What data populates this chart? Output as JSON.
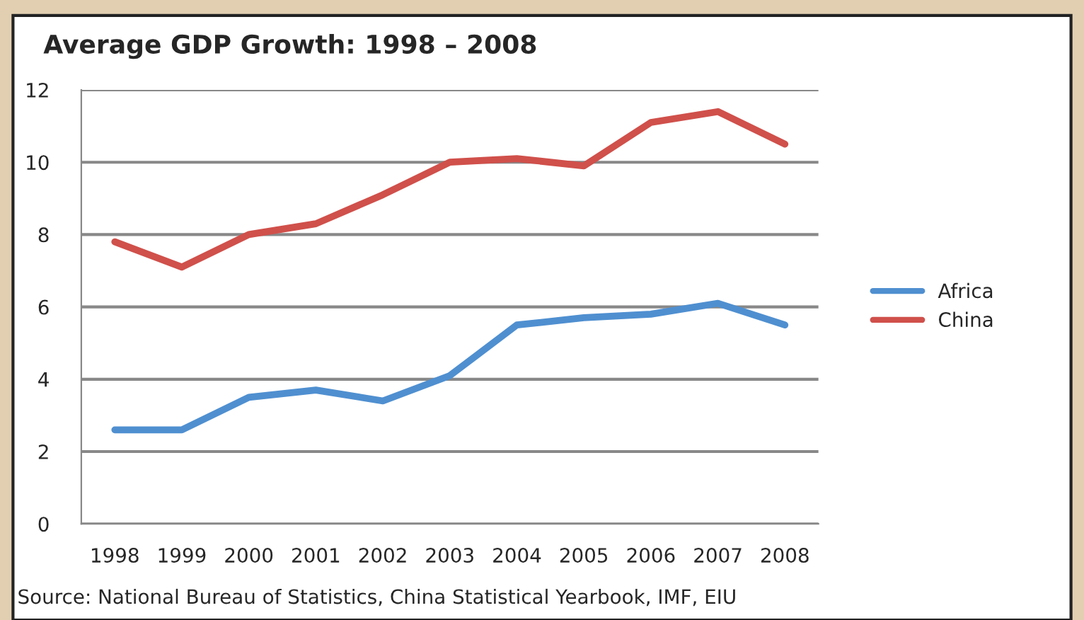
{
  "chart_data": {
    "type": "line",
    "title": "Average GDP Growth: 1998 – 2008",
    "categories": [
      "1998",
      "1999",
      "2000",
      "2001",
      "2002",
      "2003",
      "2004",
      "2005",
      "2006",
      "2007",
      "2008"
    ],
    "series": [
      {
        "name": "Africa",
        "color": "#4f8fd0",
        "values": [
          2.6,
          2.6,
          3.5,
          3.7,
          3.4,
          4.1,
          5.5,
          5.7,
          5.8,
          6.1,
          5.5
        ]
      },
      {
        "name": "China",
        "color": "#d0504b",
        "values": [
          7.8,
          7.1,
          8.0,
          8.3,
          9.1,
          10.0,
          10.1,
          9.9,
          11.1,
          11.4,
          10.5
        ]
      }
    ],
    "ylim": [
      0,
      12
    ],
    "yticks": [
      0,
      2,
      4,
      6,
      8,
      10,
      12
    ],
    "grid": "y",
    "legend": "right",
    "marker": "none",
    "line_style": "solid",
    "annotations": [
      "Source: National Bureau of Statistics, China Statistical Yearbook, IMF, EIU"
    ]
  }
}
